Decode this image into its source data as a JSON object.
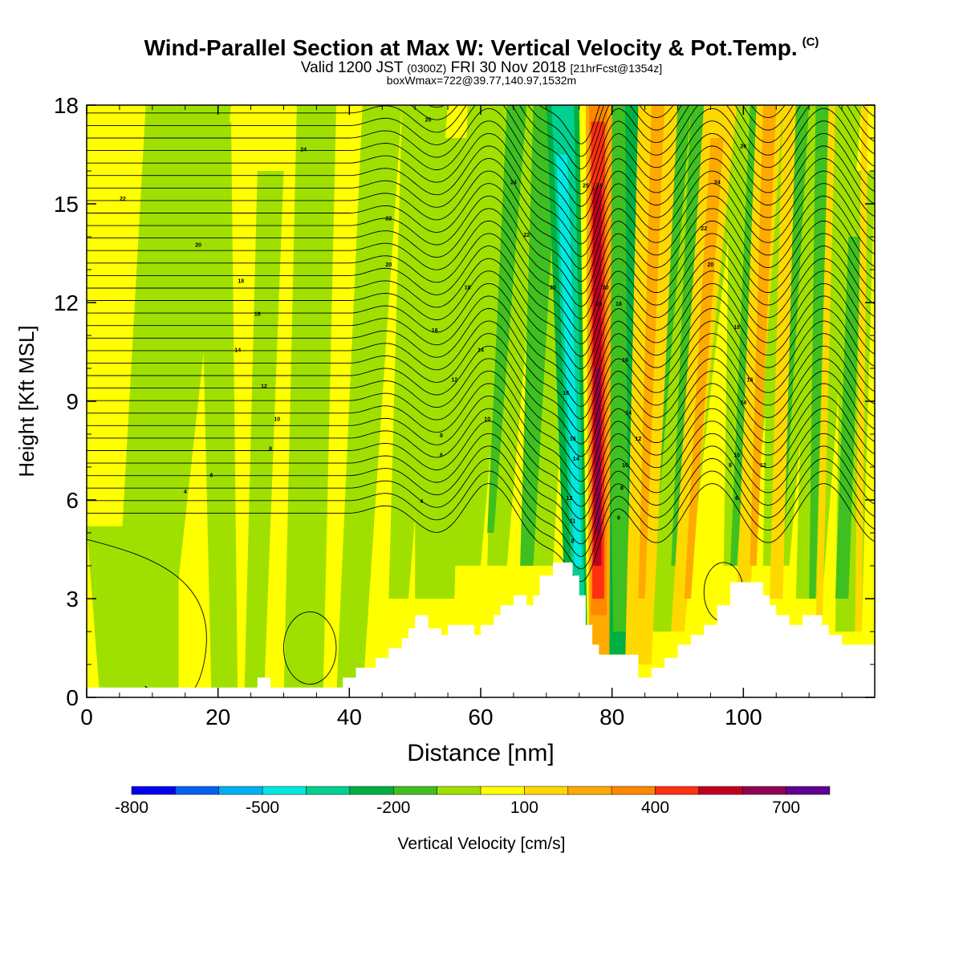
{
  "title": {
    "main": "Wind-Parallel Section at Max W: Vertical Velocity & Pot.Temp.",
    "copyright": "(C)",
    "valid_prefix": "Valid 1200 JST",
    "valid_utc": "(0300Z)",
    "valid_date": "FRI 30 Nov 2018",
    "forecast": "[21hrFcst@1354z]",
    "boxwmax": "boxWmax=722@39.77,140.97,1532m"
  },
  "chart_data": {
    "type": "heatmap",
    "xlabel": "Distance [nm]",
    "ylabel": "Height [Kft MSL]",
    "xlim": [
      0,
      120
    ],
    "ylim": [
      0,
      18
    ],
    "xticks": [
      "0",
      "20",
      "40",
      "60",
      "80",
      "100"
    ],
    "yticks": [
      "0",
      "3",
      "6",
      "9",
      "12",
      "15",
      "18"
    ],
    "colorbar": {
      "label": "Vertical Velocity [cm/s]",
      "ticks": [
        "-800",
        "-500",
        "-200",
        "100",
        "400",
        "700"
      ],
      "colors": [
        "#0000ee",
        "#0060ee",
        "#00b0f0",
        "#00e8e0",
        "#00d090",
        "#00b040",
        "#40c020",
        "#a0e000",
        "#ffff00",
        "#ffd800",
        "#ffaa00",
        "#ff8800",
        "#ff3010",
        "#c00020",
        "#900050",
        "#600090"
      ],
      "ranges": [
        [
          -800,
          -700
        ],
        [
          -700,
          -600
        ],
        [
          -600,
          -500
        ],
        [
          -500,
          -400
        ],
        [
          -400,
          -300
        ],
        [
          -300,
          -200
        ],
        [
          -200,
          -100
        ],
        [
          -100,
          0
        ],
        [
          0,
          100
        ],
        [
          100,
          200
        ],
        [
          200,
          300
        ],
        [
          300,
          400
        ],
        [
          400,
          500
        ],
        [
          500,
          600
        ],
        [
          600,
          700
        ],
        [
          700,
          800
        ]
      ]
    },
    "terrain": [
      [
        0,
        0.3
      ],
      [
        26,
        0.3
      ],
      [
        26,
        0.6
      ],
      [
        28,
        0.6
      ],
      [
        28,
        0.3
      ],
      [
        39,
        0.3
      ],
      [
        39,
        0.6
      ],
      [
        41,
        0.6
      ],
      [
        41,
        0.9
      ],
      [
        44,
        0.9
      ],
      [
        44,
        1.2
      ],
      [
        46,
        1.2
      ],
      [
        46,
        1.5
      ],
      [
        48,
        1.5
      ],
      [
        48,
        1.8
      ],
      [
        49,
        1.8
      ],
      [
        49,
        2.1
      ],
      [
        50,
        2.1
      ],
      [
        50,
        2.5
      ],
      [
        52,
        2.5
      ],
      [
        52,
        2.1
      ],
      [
        54,
        2.1
      ],
      [
        54,
        1.9
      ],
      [
        55,
        1.9
      ],
      [
        55,
        2.2
      ],
      [
        59,
        2.2
      ],
      [
        59,
        1.9
      ],
      [
        60,
        1.9
      ],
      [
        60,
        2.2
      ],
      [
        62,
        2.2
      ],
      [
        62,
        2.5
      ],
      [
        63,
        2.5
      ],
      [
        63,
        2.8
      ],
      [
        65,
        2.8
      ],
      [
        65,
        3.1
      ],
      [
        67,
        3.1
      ],
      [
        67,
        2.8
      ],
      [
        68,
        2.8
      ],
      [
        68,
        3.1
      ],
      [
        69,
        3.1
      ],
      [
        69,
        3.7
      ],
      [
        71,
        3.7
      ],
      [
        71,
        4.1
      ],
      [
        74,
        4.1
      ],
      [
        74,
        3.7
      ],
      [
        75,
        3.7
      ],
      [
        75,
        3.1
      ],
      [
        76,
        3.1
      ],
      [
        76,
        2.2
      ],
      [
        77,
        2.2
      ],
      [
        77,
        1.6
      ],
      [
        78,
        1.6
      ],
      [
        78,
        1.3
      ],
      [
        84,
        1.3
      ],
      [
        84,
        0.6
      ],
      [
        86,
        0.6
      ],
      [
        86,
        0.9
      ],
      [
        88,
        0.9
      ],
      [
        88,
        1.2
      ],
      [
        90,
        1.2
      ],
      [
        90,
        1.6
      ],
      [
        92,
        1.6
      ],
      [
        92,
        1.9
      ],
      [
        94,
        1.9
      ],
      [
        94,
        2.2
      ],
      [
        96,
        2.2
      ],
      [
        96,
        2.8
      ],
      [
        98,
        2.8
      ],
      [
        98,
        3.5
      ],
      [
        103,
        3.5
      ],
      [
        103,
        3.1
      ],
      [
        104,
        3.1
      ],
      [
        104,
        2.8
      ],
      [
        105,
        2.8
      ],
      [
        105,
        2.5
      ],
      [
        107,
        2.5
      ],
      [
        107,
        2.2
      ],
      [
        109,
        2.2
      ],
      [
        109,
        2.5
      ],
      [
        112,
        2.5
      ],
      [
        112,
        2.2
      ],
      [
        113,
        2.2
      ],
      [
        113,
        1.9
      ],
      [
        115,
        1.9
      ],
      [
        115,
        1.6
      ],
      [
        120,
        1.6
      ]
    ],
    "theta_labels": [
      {
        "x": 5.5,
        "y": 15.1,
        "v": "22"
      },
      {
        "x": 17.0,
        "y": 13.7,
        "v": "20"
      },
      {
        "x": 23.5,
        "y": 12.6,
        "v": "18"
      },
      {
        "x": 26.0,
        "y": 11.6,
        "v": "16"
      },
      {
        "x": 23.0,
        "y": 10.5,
        "v": "14"
      },
      {
        "x": 27.0,
        "y": 9.4,
        "v": "12"
      },
      {
        "x": 29.0,
        "y": 8.4,
        "v": "10"
      },
      {
        "x": 28.0,
        "y": 7.5,
        "v": "8"
      },
      {
        "x": 19.0,
        "y": 6.7,
        "v": "6"
      },
      {
        "x": 15.0,
        "y": 6.2,
        "v": "4"
      },
      {
        "x": 33.0,
        "y": 16.6,
        "v": "24"
      },
      {
        "x": 52.0,
        "y": 17.5,
        "v": "26"
      },
      {
        "x": 46.0,
        "y": 14.5,
        "v": "22"
      },
      {
        "x": 46.0,
        "y": 13.1,
        "v": "20"
      },
      {
        "x": 58.0,
        "y": 12.4,
        "v": "18"
      },
      {
        "x": 53.0,
        "y": 11.1,
        "v": "16"
      },
      {
        "x": 56.0,
        "y": 9.6,
        "v": "12"
      },
      {
        "x": 60.0,
        "y": 10.5,
        "v": "14"
      },
      {
        "x": 61.0,
        "y": 8.4,
        "v": "10"
      },
      {
        "x": 54.0,
        "y": 7.9,
        "v": "8"
      },
      {
        "x": 54.0,
        "y": 7.3,
        "v": "6"
      },
      {
        "x": 51.0,
        "y": 5.9,
        "v": "4"
      },
      {
        "x": 65.0,
        "y": 15.6,
        "v": "24"
      },
      {
        "x": 67.0,
        "y": 14.0,
        "v": "22"
      },
      {
        "x": 71.0,
        "y": 12.4,
        "v": "20"
      },
      {
        "x": 73.0,
        "y": 9.2,
        "v": "16"
      },
      {
        "x": 74.0,
        "y": 7.8,
        "v": "16"
      },
      {
        "x": 74.5,
        "y": 7.2,
        "v": "14"
      },
      {
        "x": 73.5,
        "y": 6.0,
        "v": "12"
      },
      {
        "x": 74.0,
        "y": 5.3,
        "v": "11"
      },
      {
        "x": 74.0,
        "y": 4.7,
        "v": "8"
      },
      {
        "x": 76.0,
        "y": 15.5,
        "v": "25"
      },
      {
        "x": 78.0,
        "y": 15.5,
        "v": "24"
      },
      {
        "x": 79.0,
        "y": 12.4,
        "v": "20"
      },
      {
        "x": 78.0,
        "y": 11.9,
        "v": "20"
      },
      {
        "x": 81.0,
        "y": 11.9,
        "v": "18"
      },
      {
        "x": 82.0,
        "y": 10.2,
        "v": "16"
      },
      {
        "x": 82.5,
        "y": 8.6,
        "v": "14"
      },
      {
        "x": 84.0,
        "y": 7.8,
        "v": "12"
      },
      {
        "x": 82.0,
        "y": 7.0,
        "v": "10"
      },
      {
        "x": 81.5,
        "y": 6.3,
        "v": "8"
      },
      {
        "x": 81.0,
        "y": 5.4,
        "v": "6"
      },
      {
        "x": 100.0,
        "y": 16.7,
        "v": "26"
      },
      {
        "x": 96.0,
        "y": 15.6,
        "v": "24"
      },
      {
        "x": 94.0,
        "y": 14.2,
        "v": "22"
      },
      {
        "x": 95.0,
        "y": 13.1,
        "v": "20"
      },
      {
        "x": 99.0,
        "y": 11.2,
        "v": "18"
      },
      {
        "x": 101.0,
        "y": 9.6,
        "v": "16"
      },
      {
        "x": 100.0,
        "y": 8.9,
        "v": "14"
      },
      {
        "x": 99.0,
        "y": 7.3,
        "v": "10"
      },
      {
        "x": 103.0,
        "y": 7.0,
        "v": "12"
      },
      {
        "x": 98.0,
        "y": 7.0,
        "v": "8"
      },
      {
        "x": 99.0,
        "y": 6.0,
        "v": "6"
      }
    ]
  }
}
